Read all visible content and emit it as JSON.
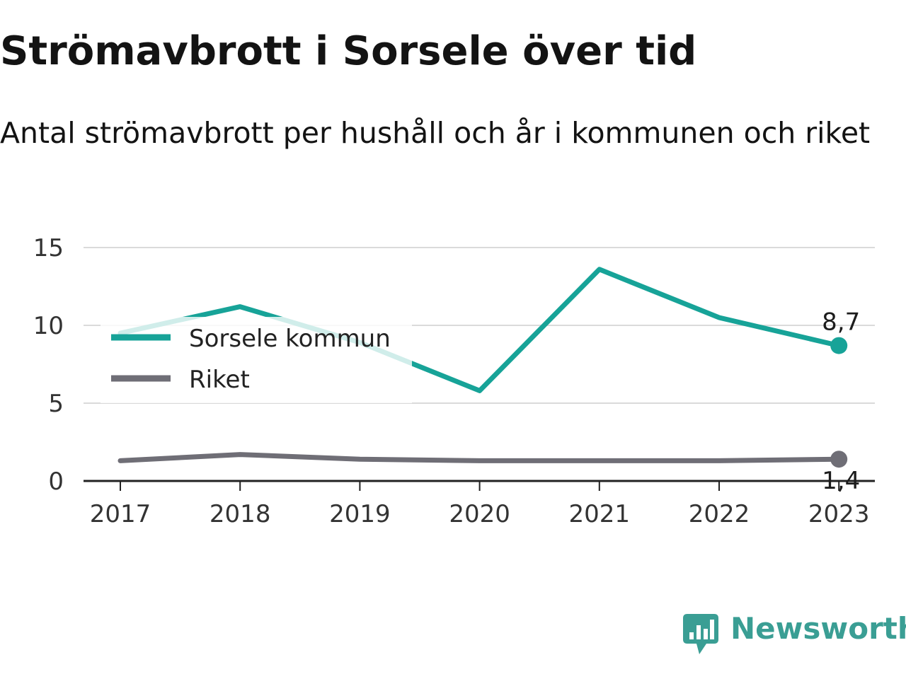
{
  "chart_data": {
    "type": "line",
    "title": "Strömavbrott i Sorsele över tid",
    "subtitle": "Antal strömavbrott per hushåll och år i kommunen och riket",
    "x": [
      "2017",
      "2018",
      "2019",
      "2020",
      "2021",
      "2022",
      "2023"
    ],
    "series": [
      {
        "name": "Sorsele kommun",
        "color": "#17a398",
        "values": [
          9.5,
          11.2,
          8.9,
          5.8,
          13.6,
          10.5,
          8.7
        ],
        "end_label": "8,7"
      },
      {
        "name": "Riket",
        "color": "#6f6e76",
        "values": [
          1.3,
          1.7,
          1.4,
          1.3,
          1.3,
          1.3,
          1.4
        ],
        "end_label": "1,4"
      }
    ],
    "y_ticks": [
      "0",
      "5",
      "10",
      "15"
    ],
    "ylim": [
      0,
      15
    ],
    "grid": true,
    "legend_position": "top-left"
  },
  "brand": {
    "name": "Newsworthy",
    "color": "#3a9e94",
    "icon": "newsworthy-logo-icon"
  }
}
